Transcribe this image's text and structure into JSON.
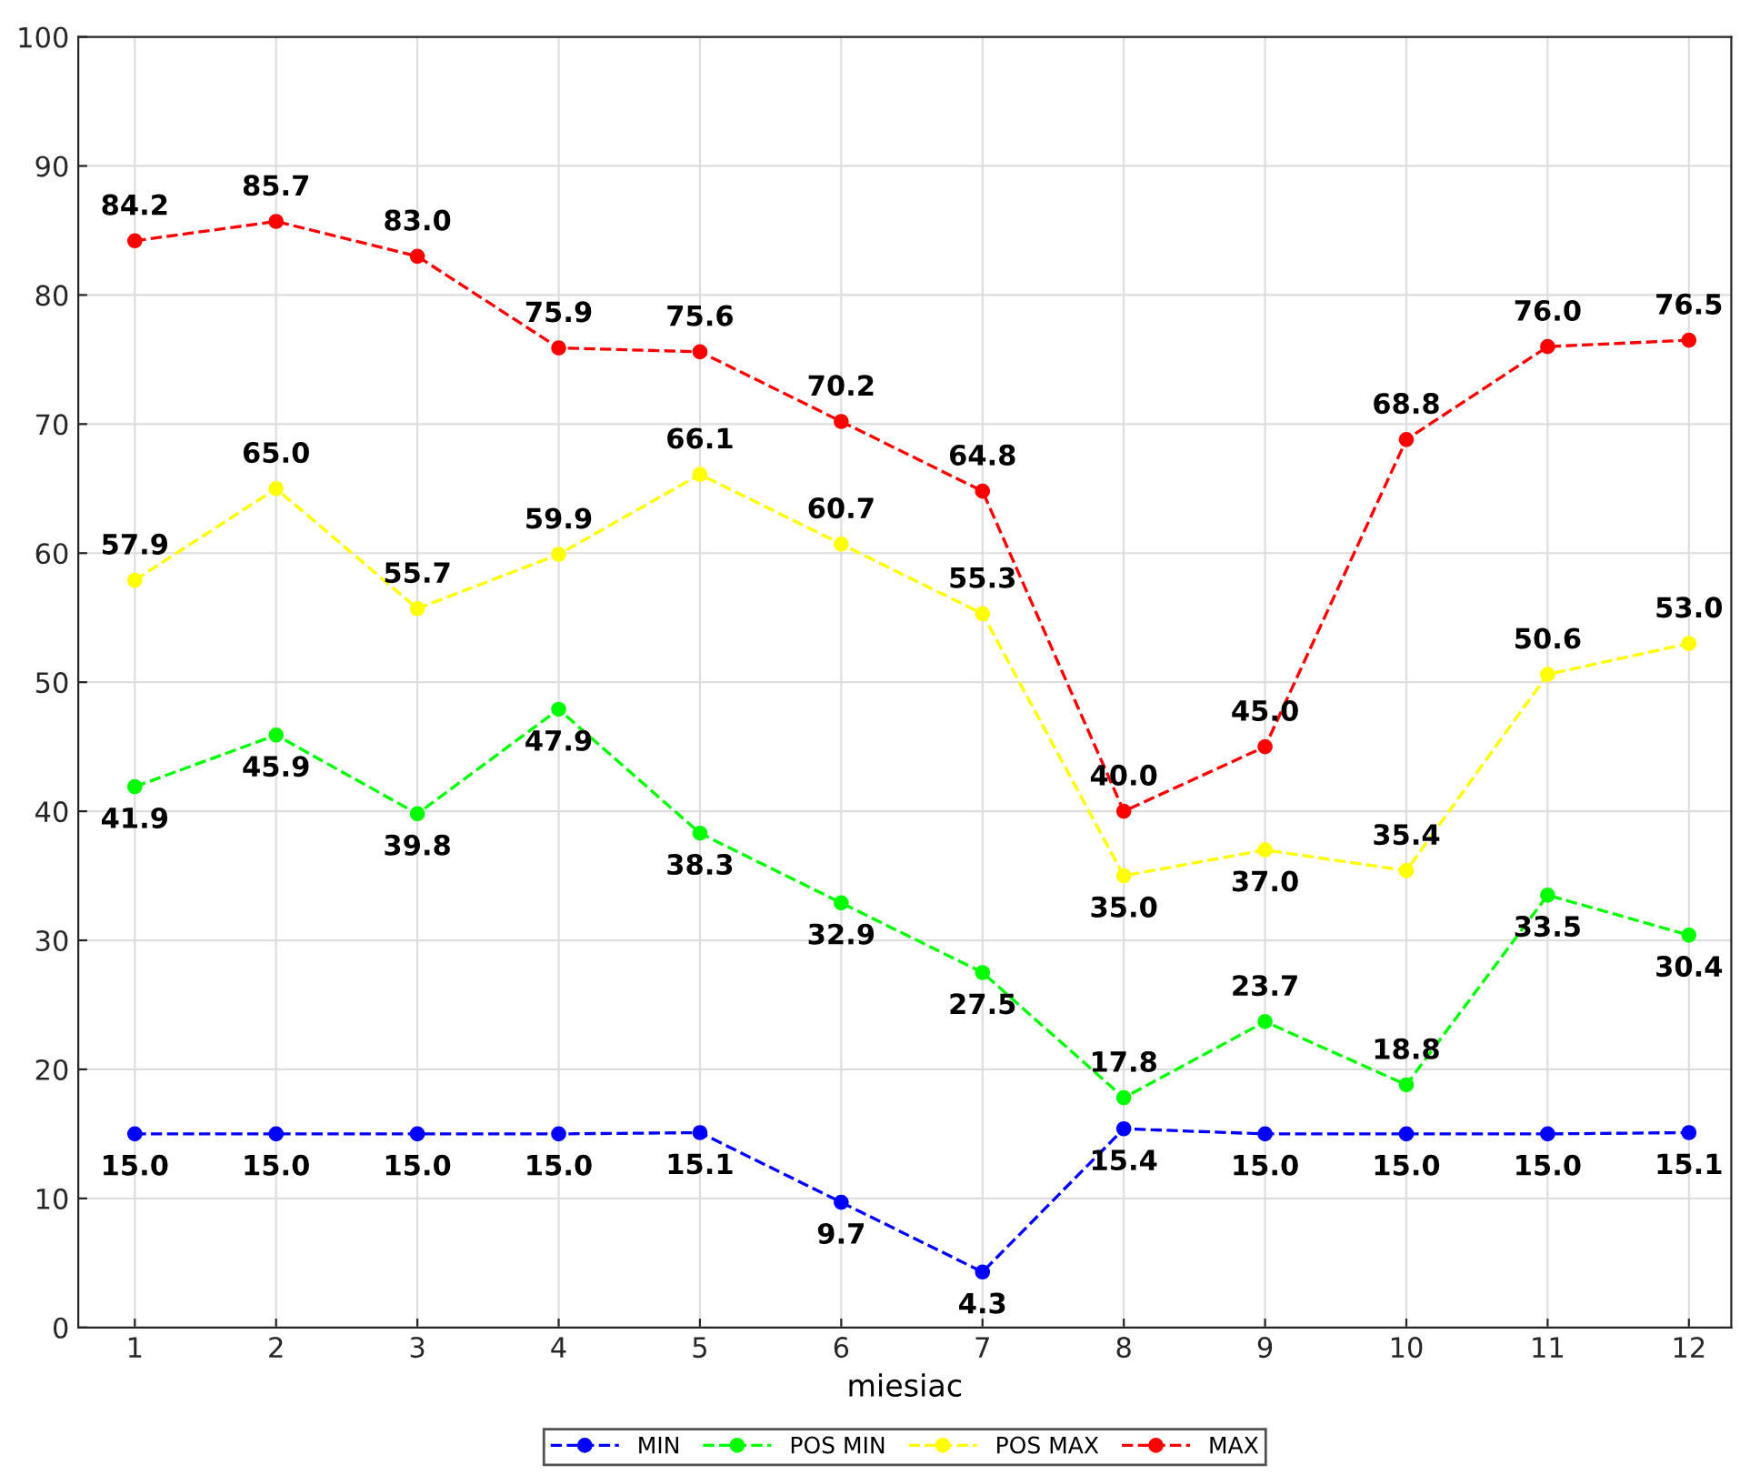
{
  "chart_data": {
    "type": "line",
    "xlabel": "miesiac",
    "x": [
      1,
      2,
      3,
      4,
      5,
      6,
      7,
      8,
      9,
      10,
      11,
      12
    ],
    "xlim": [
      0.6,
      12.3
    ],
    "xticks": [
      1,
      2,
      3,
      4,
      5,
      6,
      7,
      8,
      9,
      10,
      11,
      12
    ],
    "ylim": [
      0,
      100
    ],
    "yticks": [
      0,
      10,
      20,
      30,
      40,
      50,
      60,
      70,
      80,
      90,
      100
    ],
    "grid": true,
    "legend": "bottom",
    "marker": "circle",
    "line_style": "dashed",
    "series": [
      {
        "name": "MIN",
        "color": "#0000ff",
        "values": [
          15.0,
          15.0,
          15.0,
          15.0,
          15.1,
          9.7,
          4.3,
          15.4,
          15.0,
          15.0,
          15.0,
          15.1
        ],
        "value_labels": [
          "15.0",
          "15.0",
          "15.0",
          "15.0",
          "15.1",
          "9.7",
          "4.3",
          "15.4",
          "15.0",
          "15.0",
          "15.0",
          "15.1"
        ]
      },
      {
        "name": "POS MIN",
        "color": "#00ff00",
        "values": [
          41.9,
          45.9,
          39.8,
          47.9,
          38.3,
          32.9,
          27.5,
          17.8,
          23.7,
          18.8,
          33.5,
          30.4
        ],
        "value_labels": [
          "41.9",
          "45.9",
          "39.8",
          "47.9",
          "38.3",
          "32.9",
          "27.5",
          "17.8",
          "23.7",
          "18.8",
          "33.5",
          "30.4"
        ]
      },
      {
        "name": "POS MAX",
        "color": "#ffff00",
        "values": [
          57.9,
          65.0,
          55.7,
          59.9,
          66.1,
          60.7,
          55.3,
          35.0,
          37.0,
          35.4,
          50.6,
          53.0
        ],
        "value_labels": [
          "57.9",
          "65.0",
          "55.7",
          "59.9",
          "66.1",
          "60.7",
          "55.3",
          "35.0",
          "37.0",
          "35.4",
          "50.6",
          "53.0"
        ]
      },
      {
        "name": "MAX",
        "color": "#ff0000",
        "values": [
          84.2,
          85.7,
          83.0,
          75.9,
          75.6,
          70.2,
          64.8,
          40.0,
          45.0,
          68.8,
          76.0,
          76.5
        ],
        "value_labels": [
          "84.2",
          "85.7",
          "83.0",
          "75.9",
          "75.6",
          "70.2",
          "64.8",
          "40.0",
          "45.0",
          "68.8",
          "76.0",
          "76.5"
        ]
      }
    ]
  }
}
